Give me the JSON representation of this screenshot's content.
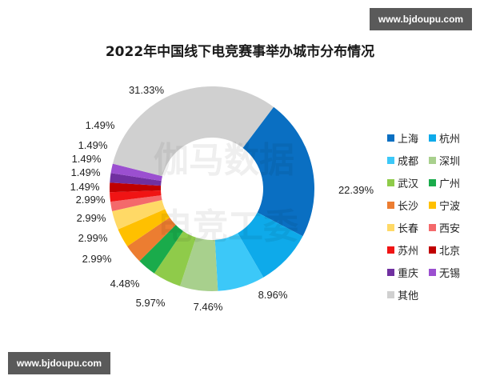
{
  "watermarks": {
    "top": "www.bjdoupu.com",
    "bottom": "www.bjdoupu.com"
  },
  "chart_data": {
    "type": "pie",
    "variant": "donut",
    "title": "2022年中国线下电竞赛事举办城市分布情况",
    "categories": [
      "上海",
      "杭州",
      "成都",
      "深圳",
      "武汉",
      "广州",
      "长沙",
      "宁波",
      "长春",
      "西安",
      "苏州",
      "北京",
      "重庆",
      "无锡",
      "其他"
    ],
    "values": [
      22.39,
      8.96,
      7.46,
      5.97,
      4.48,
      2.99,
      2.99,
      2.99,
      2.99,
      1.49,
      1.49,
      1.49,
      1.49,
      1.49,
      31.33
    ],
    "labels": [
      "22.39%",
      "8.96%",
      "7.46%",
      "5.97%",
      "4.48%",
      "2.99%",
      "2.99%",
      "2.99%",
      "2.99%",
      "1.49%",
      "1.49%",
      "1.49%",
      "1.49%",
      "1.49%",
      "31.33%"
    ],
    "colors": [
      "#0a6fc2",
      "#0eaaea",
      "#3cc8f8",
      "#a8d08d",
      "#8fcb4a",
      "#1aab4b",
      "#ec7d31",
      "#ffc000",
      "#ffd966",
      "#f4696b",
      "#f01414",
      "#c00000",
      "#7030a0",
      "#9b4fd0",
      "#d0d0d0"
    ],
    "legend_position": "right",
    "unit": "%"
  },
  "legend": [
    {
      "label": "上海",
      "color": "#0a6fc2"
    },
    {
      "label": "杭州",
      "color": "#0eaaea"
    },
    {
      "label": "成都",
      "color": "#3cc8f8"
    },
    {
      "label": "深圳",
      "color": "#a8d08d"
    },
    {
      "label": "武汉",
      "color": "#8fcb4a"
    },
    {
      "label": "广州",
      "color": "#1aab4b"
    },
    {
      "label": "长沙",
      "color": "#ec7d31"
    },
    {
      "label": "宁波",
      "color": "#ffc000"
    },
    {
      "label": "长春",
      "color": "#ffd966"
    },
    {
      "label": "西安",
      "color": "#f4696b"
    },
    {
      "label": "苏州",
      "color": "#f01414"
    },
    {
      "label": "北京",
      "color": "#c00000"
    },
    {
      "label": "重庆",
      "color": "#7030a0"
    },
    {
      "label": "无锡",
      "color": "#9b4fd0"
    },
    {
      "label": "其他",
      "color": "#d0d0d0"
    }
  ],
  "center_watermark": [
    "伽马数据",
    "电竞工委"
  ]
}
